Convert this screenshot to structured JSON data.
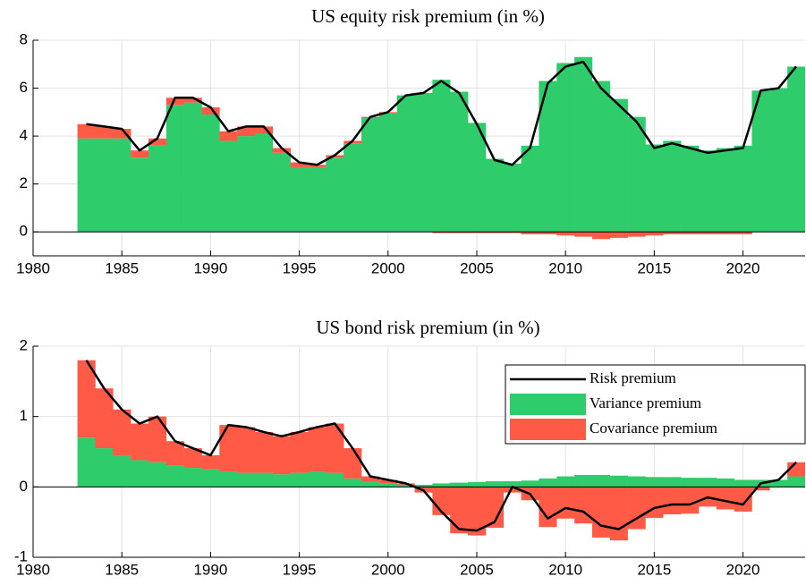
{
  "chart_data": [
    {
      "type": "bar",
      "stacked": true,
      "title": "US equity risk premium (in %)",
      "x": [
        1983,
        1984,
        1985,
        1986,
        1987,
        1988,
        1989,
        1990,
        1991,
        1992,
        1993,
        1994,
        1995,
        1996,
        1997,
        1998,
        1999,
        2000,
        2001,
        2002,
        2003,
        2004,
        2005,
        2006,
        2007,
        2008,
        2009,
        2010,
        2011,
        2012,
        2013,
        2014,
        2015,
        2016,
        2017,
        2018,
        2019,
        2020,
        2021,
        2022,
        2023
      ],
      "series": [
        {
          "type": "bar",
          "color": "#2ecc6a",
          "values": [
            3.9,
            3.9,
            3.9,
            3.1,
            3.6,
            5.3,
            5.4,
            4.9,
            3.8,
            4.0,
            4.1,
            3.3,
            2.7,
            2.7,
            3.1,
            3.7,
            4.75,
            4.95,
            5.7,
            5.8,
            6.35,
            5.85,
            4.55,
            3.05,
            2.85,
            3.6,
            6.3,
            7.05,
            7.3,
            6.3,
            5.55,
            4.8,
            3.65,
            3.8,
            3.6,
            3.4,
            3.5,
            3.6,
            5.9,
            6.0,
            6.9
          ]
        },
        {
          "type": "bar",
          "color": "#ff5a45",
          "values": [
            0.6,
            0.5,
            0.4,
            0.3,
            0.3,
            0.3,
            0.2,
            0.3,
            0.4,
            0.4,
            0.3,
            0.2,
            0.2,
            0.1,
            0.1,
            0.1,
            0.05,
            0.05,
            0,
            0,
            -0.05,
            -0.05,
            -0.05,
            -0.05,
            -0.05,
            -0.1,
            -0.1,
            -0.15,
            -0.2,
            -0.3,
            -0.25,
            -0.2,
            -0.15,
            -0.1,
            -0.1,
            -0.1,
            -0.1,
            -0.1,
            0,
            0,
            0
          ]
        },
        {
          "type": "line",
          "color": "#000000",
          "values": [
            4.5,
            4.4,
            4.3,
            3.4,
            3.9,
            5.6,
            5.6,
            5.2,
            4.2,
            4.4,
            4.4,
            3.5,
            2.9,
            2.8,
            3.2,
            3.8,
            4.8,
            5.0,
            5.7,
            5.8,
            6.3,
            5.8,
            4.5,
            3.0,
            2.8,
            3.5,
            6.2,
            6.9,
            7.1,
            6.0,
            5.3,
            4.6,
            3.5,
            3.7,
            3.5,
            3.3,
            3.4,
            3.5,
            5.9,
            6.0,
            6.9
          ]
        }
      ],
      "xlim": [
        1980,
        2023.5
      ],
      "xticks": [
        1980,
        1985,
        1990,
        1995,
        2000,
        2005,
        2010,
        2015,
        2020
      ],
      "ylim": [
        -1,
        8
      ],
      "yticks": [
        0,
        2,
        4,
        6,
        8
      ],
      "grid": true
    },
    {
      "type": "bar",
      "stacked": true,
      "title": "US bond risk premium (in %)",
      "x": [
        1983,
        1984,
        1985,
        1986,
        1987,
        1988,
        1989,
        1990,
        1991,
        1992,
        1993,
        1994,
        1995,
        1996,
        1997,
        1998,
        1999,
        2000,
        2001,
        2002,
        2003,
        2004,
        2005,
        2006,
        2007,
        2008,
        2009,
        2010,
        2011,
        2012,
        2013,
        2014,
        2015,
        2016,
        2017,
        2018,
        2019,
        2020,
        2021,
        2022,
        2023
      ],
      "series": [
        {
          "name": "Variance premium",
          "type": "bar",
          "color": "#2ecc6a",
          "values": [
            0.7,
            0.55,
            0.45,
            0.38,
            0.35,
            0.3,
            0.27,
            0.25,
            0.22,
            0.2,
            0.2,
            0.18,
            0.2,
            0.22,
            0.2,
            0.12,
            0.08,
            0.05,
            0.03,
            0.03,
            0.05,
            0.06,
            0.07,
            0.08,
            0.08,
            0.09,
            0.12,
            0.15,
            0.17,
            0.17,
            0.16,
            0.15,
            0.14,
            0.14,
            0.13,
            0.13,
            0.12,
            0.1,
            0.1,
            0.1,
            0.15
          ]
        },
        {
          "name": "Covariance premium",
          "type": "bar",
          "color": "#ff5a45",
          "values": [
            1.1,
            0.85,
            0.65,
            0.52,
            0.65,
            0.35,
            0.28,
            0.2,
            0.66,
            0.65,
            0.58,
            0.54,
            0.58,
            0.63,
            0.7,
            0.43,
            0.07,
            0.05,
            0.02,
            -0.08,
            -0.4,
            -0.66,
            -0.69,
            -0.58,
            -0.08,
            -0.19,
            -0.57,
            -0.45,
            -0.52,
            -0.72,
            -0.76,
            -0.6,
            -0.44,
            -0.39,
            -0.38,
            -0.28,
            -0.32,
            -0.35,
            -0.05,
            0,
            0.2
          ]
        },
        {
          "name": "Risk premium",
          "type": "line",
          "color": "#000000",
          "values": [
            1.8,
            1.4,
            1.1,
            0.9,
            1.0,
            0.65,
            0.55,
            0.45,
            0.88,
            0.85,
            0.78,
            0.72,
            0.78,
            0.85,
            0.9,
            0.55,
            0.15,
            0.1,
            0.05,
            -0.05,
            -0.35,
            -0.6,
            -0.62,
            -0.5,
            0.0,
            -0.1,
            -0.45,
            -0.3,
            -0.35,
            -0.55,
            -0.6,
            -0.45,
            -0.3,
            -0.25,
            -0.25,
            -0.15,
            -0.2,
            -0.25,
            0.05,
            0.1,
            0.35
          ]
        }
      ],
      "xlim": [
        1980,
        2023.5
      ],
      "xticks": [
        1980,
        1985,
        1990,
        1995,
        2000,
        2005,
        2010,
        2015,
        2020
      ],
      "ylim": [
        -1,
        2
      ],
      "yticks": [
        -1,
        0,
        1,
        2
      ],
      "grid": true,
      "legend": "upper right"
    }
  ]
}
